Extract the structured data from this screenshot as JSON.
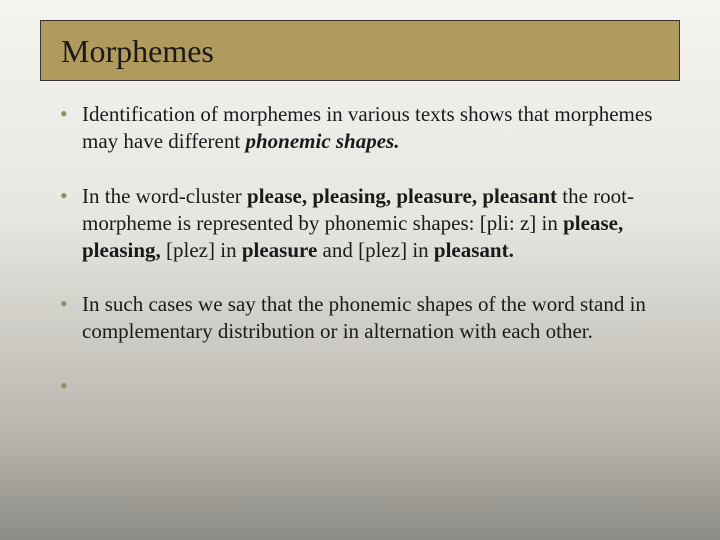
{
  "title": "Morphemes",
  "colors": {
    "title_bar_bg": "#b09a5e",
    "title_bar_border": "#333333",
    "title_text": "#1a1a1a",
    "body_text": "#1a1a1a",
    "bullet": "#8a9068",
    "gradient_top": "#f5f4f0",
    "gradient_upper_mid": "#e8e6e0",
    "gradient_lower_mid": "#b8b6af",
    "gradient_bottom": "#8e8c86"
  },
  "typography": {
    "title_fontsize": 32,
    "body_fontsize": 21,
    "font_family": "Georgia, Times New Roman, serif"
  },
  "bullets": [
    {
      "runs": [
        {
          "text": "Identification of morphemes in various texts shows that morphemes may have different ",
          "style": "normal"
        },
        {
          "text": "phonemic shapes.",
          "style": "italic-bold"
        }
      ]
    },
    {
      "runs": [
        {
          "text": "In the word-cluster ",
          "style": "normal"
        },
        {
          "text": "please, pleasing, pleasure, pleasant",
          "style": "bold"
        },
        {
          "text": " the root-morpheme is represented by phonemic shapes: [pli: z] in ",
          "style": "normal"
        },
        {
          "text": "please, pleasing,",
          "style": "bold"
        },
        {
          "text": " [plez] in ",
          "style": "normal"
        },
        {
          "text": "pleasure",
          "style": "bold"
        },
        {
          "text": " and [plez] in ",
          "style": "normal"
        },
        {
          "text": "pleasant.",
          "style": "bold"
        }
      ]
    },
    {
      "runs": [
        {
          "text": "In such cases we say that the phonemic shapes of the word stand in complementary distribution or in alternation with each other.",
          "style": "normal"
        }
      ]
    }
  ]
}
